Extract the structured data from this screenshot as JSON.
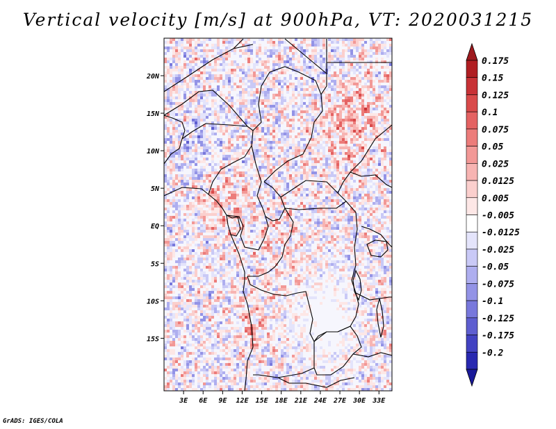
{
  "title": "Vertical velocity [m/s] at 900hPa, VT: 2020031215",
  "footer": "GrADS: IGES/COLA",
  "map": {
    "lat_range": [
      -22,
      25
    ],
    "lon_range": [
      0,
      35
    ],
    "lat_ticks": [
      {
        "value": 20,
        "label": "20N"
      },
      {
        "value": 15,
        "label": "15N"
      },
      {
        "value": 10,
        "label": "10N"
      },
      {
        "value": 5,
        "label": "5N"
      },
      {
        "value": 0,
        "label": "EQ"
      },
      {
        "value": -5,
        "label": "5S"
      },
      {
        "value": -10,
        "label": "10S"
      },
      {
        "value": -15,
        "label": "15S"
      }
    ],
    "lon_ticks": [
      {
        "value": 3,
        "label": "3E"
      },
      {
        "value": 6,
        "label": "6E"
      },
      {
        "value": 9,
        "label": "9E"
      },
      {
        "value": 12,
        "label": "12E"
      },
      {
        "value": 15,
        "label": "15E"
      },
      {
        "value": 18,
        "label": "18E"
      },
      {
        "value": 21,
        "label": "21E"
      },
      {
        "value": 24,
        "label": "24E"
      },
      {
        "value": 27,
        "label": "27E"
      },
      {
        "value": 30,
        "label": "30E"
      },
      {
        "value": 33,
        "label": "33E"
      }
    ]
  },
  "colorbar": {
    "levels": [
      {
        "label": "0.175",
        "color": "#b01e22"
      },
      {
        "label": "0.15",
        "color": "#c83236"
      },
      {
        "label": "0.125",
        "color": "#d94a4a"
      },
      {
        "label": "0.1",
        "color": "#e46262"
      },
      {
        "label": "0.075",
        "color": "#ec7c7a"
      },
      {
        "label": "0.05",
        "color": "#f29896"
      },
      {
        "label": "0.025",
        "color": "#f7b4b2"
      },
      {
        "label": "0.0125",
        "color": "#fbcfcd"
      },
      {
        "label": "0.005",
        "color": "#fde7e6"
      },
      {
        "label": "-0.005",
        "color": "#ffffff"
      },
      {
        "label": "-0.0125",
        "color": "#e4e4fb"
      },
      {
        "label": "-0.025",
        "color": "#c9c9f6"
      },
      {
        "label": "-0.05",
        "color": "#aeaeef"
      },
      {
        "label": "-0.075",
        "color": "#9393e6"
      },
      {
        "label": "-0.1",
        "color": "#7878dc"
      },
      {
        "label": "-0.125",
        "color": "#5e5ed0"
      },
      {
        "label": "-0.175",
        "color": "#4242c2"
      },
      {
        "label": "-0.2",
        "color": "#2828b0"
      }
    ],
    "top_arrow_color": "#9e1a1e",
    "bottom_arrow_color": "#1a1a9a"
  }
}
